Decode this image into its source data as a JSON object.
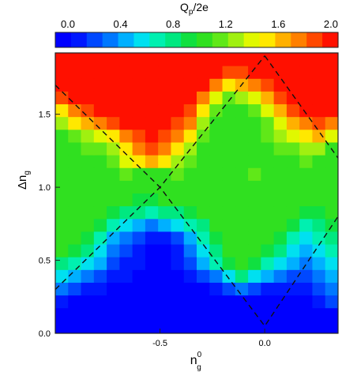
{
  "chart_data": {
    "type": "heatmap",
    "title": "",
    "colorbar": {
      "label_base": "Q",
      "label_sub": "p",
      "label_rest": "/2e",
      "ticks": [
        0.0,
        0.4,
        0.8,
        1.2,
        1.6,
        2.0
      ],
      "tick_labels": [
        "0.0",
        "0.4",
        "0.8",
        "1.2",
        "1.6",
        "2.0"
      ],
      "range": [
        0.0,
        2.0
      ],
      "colors": [
        "#0000ff",
        "#0018ff",
        "#0048ff",
        "#0078ff",
        "#00b0ff",
        "#00e0f0",
        "#00f0b0",
        "#00e880",
        "#10e040",
        "#30e020",
        "#60e818",
        "#a0f010",
        "#e0f800",
        "#ffe800",
        "#ffb000",
        "#ff8000",
        "#ff4800",
        "#ff1000"
      ]
    },
    "xaxis": {
      "label_base": "n",
      "label_sub": "g",
      "label_sup": "0",
      "range": [
        -1.0,
        0.35
      ],
      "ticks": [
        -0.5,
        0.0
      ],
      "tick_labels": [
        "-0.5",
        "0.0"
      ]
    },
    "yaxis": {
      "label_base": "Δn",
      "label_sub": "g",
      "range": [
        0.0,
        1.92
      ],
      "ticks": [
        0.0,
        0.5,
        1.0,
        1.5
      ],
      "tick_labels": [
        "0.0",
        "0.5",
        "1.0",
        "1.5"
      ]
    },
    "grid": {
      "nx": 22,
      "ny": 22,
      "x_start": -1.0,
      "x_step": 0.0614,
      "y_start": 0.0,
      "y_step": 0.0873
    },
    "z": [
      [
        0.0,
        0.0,
        0.0,
        0.0,
        0.0,
        0.0,
        0.0,
        0.0,
        0.0,
        0.0,
        0.0,
        0.0,
        0.0,
        0.0,
        0.0,
        0.0,
        0.0,
        0.0,
        0.0,
        0.0,
        0.0,
        0.0
      ],
      [
        0.0,
        0.0,
        0.0,
        0.0,
        0.0,
        0.0,
        0.0,
        0.0,
        0.0,
        0.0,
        0.0,
        0.0,
        0.0,
        0.0,
        0.0,
        0.0,
        0.0,
        0.0,
        0.0,
        0.0,
        0.0,
        0.0
      ],
      [
        0.2,
        0.1,
        0.1,
        0.0,
        0.0,
        0.0,
        0.0,
        0.0,
        0.0,
        0.0,
        0.0,
        0.0,
        0.0,
        0.0,
        0.0,
        0.0,
        0.0,
        0.0,
        0.1,
        0.1,
        0.2,
        0.3
      ],
      [
        0.4,
        0.3,
        0.2,
        0.2,
        0.1,
        0.1,
        0.0,
        0.0,
        0.0,
        0.0,
        0.1,
        0.1,
        0.2,
        0.3,
        0.4,
        0.3,
        0.2,
        0.2,
        0.2,
        0.2,
        0.3,
        0.4
      ],
      [
        0.6,
        0.5,
        0.4,
        0.3,
        0.2,
        0.2,
        0.1,
        0.1,
        0.1,
        0.1,
        0.2,
        0.3,
        0.4,
        0.6,
        0.8,
        0.6,
        0.5,
        0.4,
        0.3,
        0.3,
        0.4,
        0.5
      ],
      [
        0.8,
        0.7,
        0.6,
        0.5,
        0.3,
        0.2,
        0.2,
        0.1,
        0.1,
        0.2,
        0.3,
        0.5,
        0.7,
        0.9,
        1.0,
        0.9,
        0.7,
        0.6,
        0.5,
        0.4,
        0.5,
        0.6
      ],
      [
        1.0,
        0.9,
        0.8,
        0.6,
        0.4,
        0.3,
        0.2,
        0.1,
        0.1,
        0.2,
        0.4,
        0.6,
        0.8,
        1.0,
        1.1,
        1.0,
        0.9,
        0.8,
        0.6,
        0.5,
        0.6,
        0.7
      ],
      [
        1.0,
        1.0,
        0.9,
        0.7,
        0.5,
        0.4,
        0.3,
        0.2,
        0.2,
        0.3,
        0.5,
        0.7,
        0.9,
        1.0,
        1.1,
        1.1,
        1.0,
        0.9,
        0.7,
        0.6,
        0.7,
        0.8
      ],
      [
        1.1,
        1.0,
        1.0,
        0.9,
        0.7,
        0.6,
        0.5,
        0.4,
        0.5,
        0.6,
        0.7,
        0.8,
        1.0,
        1.1,
        1.1,
        1.1,
        1.0,
        1.0,
        0.9,
        0.7,
        0.8,
        0.9
      ],
      [
        1.0,
        1.1,
        1.0,
        1.0,
        0.9,
        0.8,
        0.8,
        0.7,
        0.8,
        0.8,
        0.9,
        1.0,
        1.0,
        1.1,
        1.1,
        1.1,
        1.1,
        1.0,
        1.0,
        0.9,
        0.9,
        1.0
      ],
      [
        1.1,
        1.0,
        1.1,
        1.1,
        1.0,
        1.0,
        0.9,
        0.9,
        1.0,
        1.0,
        1.0,
        1.0,
        1.1,
        1.1,
        1.1,
        1.1,
        1.1,
        1.0,
        1.0,
        1.0,
        1.0,
        1.0
      ],
      [
        1.0,
        1.1,
        1.1,
        1.1,
        1.1,
        1.1,
        1.0,
        1.0,
        1.1,
        1.1,
        1.0,
        1.1,
        1.1,
        1.1,
        1.1,
        1.1,
        1.1,
        1.1,
        1.1,
        1.0,
        1.1,
        1.1
      ],
      [
        1.0,
        1.1,
        1.1,
        1.1,
        1.1,
        1.2,
        1.1,
        1.1,
        1.1,
        1.2,
        1.1,
        1.1,
        1.1,
        1.1,
        1.1,
        1.2,
        1.1,
        1.1,
        1.1,
        1.1,
        1.1,
        1.1
      ],
      [
        1.0,
        1.1,
        1.1,
        1.1,
        1.2,
        1.4,
        1.5,
        1.6,
        1.5,
        1.3,
        1.2,
        1.1,
        1.1,
        1.1,
        1.1,
        1.1,
        1.1,
        1.1,
        1.1,
        1.2,
        1.1,
        1.1
      ],
      [
        1.1,
        1.1,
        1.2,
        1.2,
        1.3,
        1.5,
        1.7,
        1.8,
        1.7,
        1.5,
        1.3,
        1.1,
        1.1,
        1.1,
        1.1,
        1.1,
        1.1,
        1.2,
        1.2,
        1.3,
        1.3,
        1.1
      ],
      [
        1.1,
        1.2,
        1.3,
        1.4,
        1.5,
        1.7,
        1.8,
        1.9,
        1.8,
        1.7,
        1.5,
        1.2,
        1.1,
        1.1,
        1.1,
        1.1,
        1.2,
        1.3,
        1.4,
        1.5,
        1.6,
        1.4
      ],
      [
        1.3,
        1.5,
        1.6,
        1.7,
        1.8,
        1.9,
        1.9,
        1.9,
        1.9,
        1.8,
        1.7,
        1.3,
        1.1,
        1.0,
        1.1,
        1.1,
        1.2,
        1.4,
        1.6,
        1.7,
        1.8,
        1.7
      ],
      [
        1.5,
        1.7,
        1.8,
        1.9,
        1.9,
        2.0,
        2.0,
        2.0,
        2.0,
        1.9,
        1.8,
        1.5,
        1.2,
        1.1,
        1.1,
        1.2,
        1.4,
        1.6,
        1.8,
        1.9,
        1.9,
        1.9
      ],
      [
        1.8,
        1.9,
        1.9,
        2.0,
        2.0,
        2.0,
        2.0,
        2.0,
        2.0,
        2.0,
        1.9,
        1.7,
        1.4,
        1.2,
        1.3,
        1.4,
        1.6,
        1.8,
        1.9,
        2.0,
        2.0,
        2.0
      ],
      [
        1.9,
        2.0,
        2.0,
        2.0,
        2.0,
        2.0,
        2.0,
        2.0,
        2.0,
        2.0,
        2.0,
        1.9,
        1.7,
        1.5,
        1.6,
        1.7,
        1.8,
        1.9,
        2.0,
        2.0,
        2.0,
        2.0
      ],
      [
        2.0,
        2.0,
        2.0,
        2.0,
        2.0,
        2.0,
        2.0,
        2.0,
        2.0,
        2.0,
        2.0,
        2.0,
        1.9,
        1.8,
        1.8,
        1.9,
        2.0,
        2.0,
        2.0,
        2.0,
        2.0,
        2.0
      ],
      [
        2.0,
        2.0,
        2.0,
        2.0,
        2.0,
        2.0,
        2.0,
        2.0,
        2.0,
        2.0,
        2.0,
        2.0,
        2.0,
        2.0,
        2.0,
        2.0,
        2.0,
        2.0,
        2.0,
        2.0,
        2.0,
        2.0
      ]
    ],
    "dashed_lines": [
      {
        "name": "",
        "points": [
          [
            -1.0,
            0.3
          ],
          [
            -0.5,
            1.0
          ],
          [
            0.0,
            1.9
          ]
        ]
      },
      {
        "name": "",
        "points": [
          [
            -1.0,
            1.7
          ],
          [
            -0.5,
            1.0
          ],
          [
            0.0,
            0.05
          ],
          [
            0.35,
            0.8
          ]
        ]
      },
      {
        "name": "",
        "points": [
          [
            0.0,
            1.9
          ],
          [
            0.35,
            1.2
          ]
        ]
      }
    ]
  }
}
